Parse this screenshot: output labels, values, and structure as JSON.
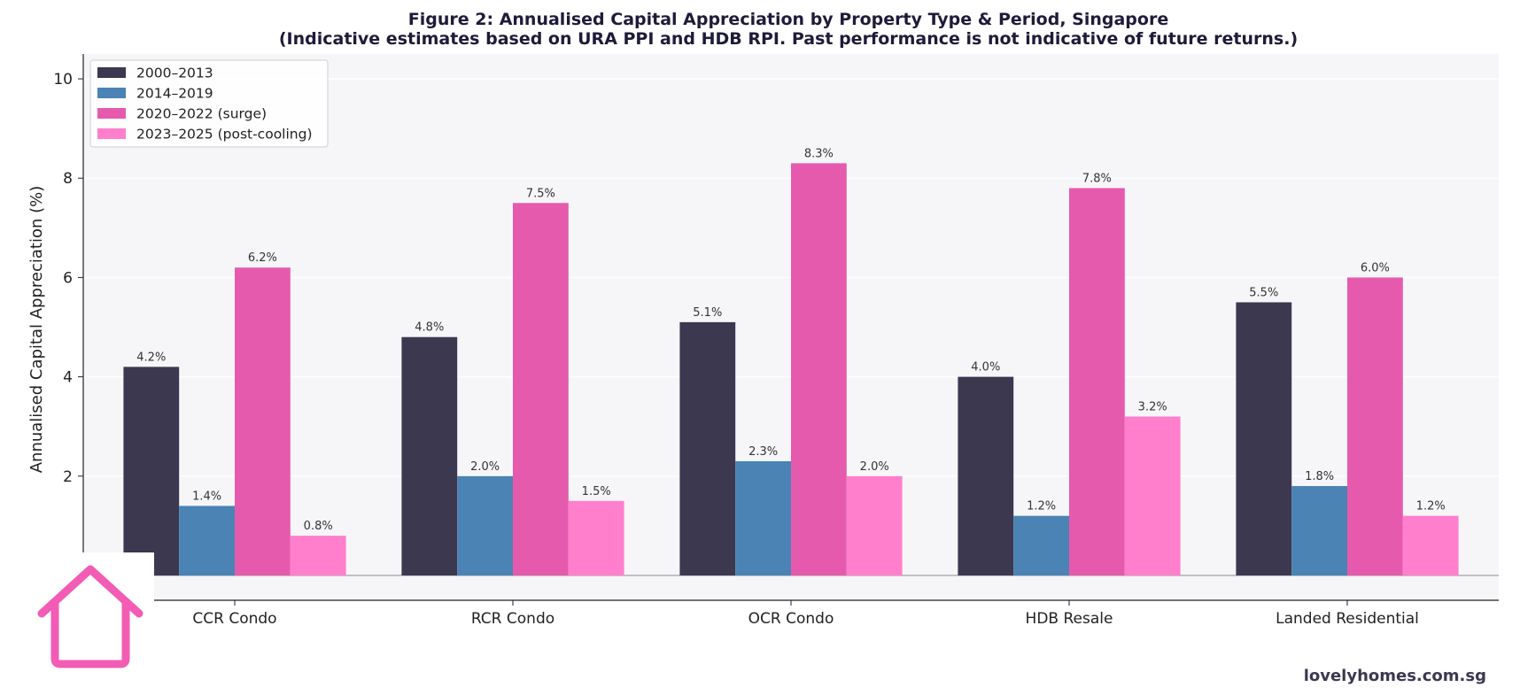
{
  "chart_data": {
    "type": "bar",
    "title": "Figure 2: Annualised Capital Appreciation by Property Type & Period, Singapore",
    "subtitle": "(Indicative estimates based on URA PPI and HDB RPI. Past performance is not indicative of future returns.)",
    "xlabel": "",
    "ylabel": "Annualised Capital Appreciation (%)",
    "ylim": [
      -0.5,
      10.5
    ],
    "yticks": [
      2,
      4,
      6,
      8,
      10
    ],
    "grid": "y",
    "legend_position": "top-left",
    "categories": [
      "CCR Condo",
      "RCR Condo",
      "OCR Condo",
      "HDB Resale",
      "Landed Residential"
    ],
    "series": [
      {
        "name": "2000–2013",
        "color": "#3c3850",
        "values": [
          4.2,
          4.8,
          5.1,
          4.0,
          5.5
        ],
        "labels": [
          "4.2%",
          "4.8%",
          "5.1%",
          "4.0%",
          "5.5%"
        ]
      },
      {
        "name": "2014–2019",
        "color": "#4a83b4",
        "values": [
          1.4,
          2.0,
          2.3,
          1.2,
          1.8
        ],
        "labels": [
          "1.4%",
          "2.0%",
          "2.3%",
          "1.2%",
          "1.8%"
        ]
      },
      {
        "name": "2020–2022 (surge)",
        "color": "#e65aad",
        "values": [
          6.2,
          7.5,
          8.3,
          7.8,
          6.0
        ],
        "labels": [
          "6.2%",
          "7.5%",
          "8.3%",
          "7.8%",
          "6.0%"
        ]
      },
      {
        "name": "2023–2025 (post-cooling)",
        "color": "#ff7fcc",
        "values": [
          0.8,
          1.5,
          2.0,
          3.2,
          1.2
        ],
        "labels": [
          "0.8%",
          "1.5%",
          "2.0%",
          "3.2%",
          "1.2%"
        ]
      }
    ]
  },
  "branding": {
    "site": "lovelyhomes.com.sg",
    "logo_icon": "house-outline-icon",
    "logo_color": "#f25cb4"
  }
}
